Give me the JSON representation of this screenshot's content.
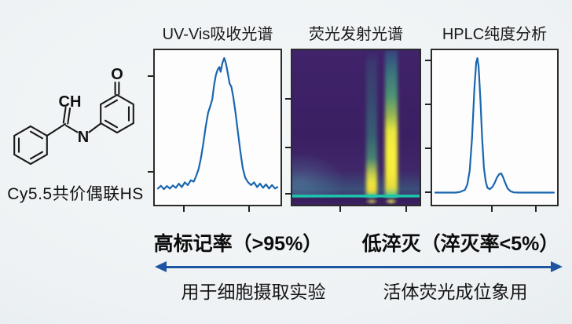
{
  "figure": {
    "molecule_label": "Cy5.5共价偶联HS",
    "atoms": {
      "vinyl": "CH",
      "nitrogen": "N",
      "oxygen": "O"
    }
  },
  "chart_data": [
    {
      "panel": "uvvis",
      "type": "line",
      "title": "UV-Vis吸收光谱",
      "line_color": "#1a66af",
      "xlabel": "",
      "ylabel": "",
      "x_range_normalized": [
        0,
        1
      ],
      "y_range_normalized": [
        0,
        1
      ],
      "points": [
        [
          0,
          0.05
        ],
        [
          0.025,
          0.07
        ],
        [
          0.05,
          0.045
        ],
        [
          0.075,
          0.068
        ],
        [
          0.1,
          0.05
        ],
        [
          0.125,
          0.072
        ],
        [
          0.15,
          0.055
        ],
        [
          0.175,
          0.085
        ],
        [
          0.2,
          0.06
        ],
        [
          0.225,
          0.095
        ],
        [
          0.25,
          0.075
        ],
        [
          0.275,
          0.11
        ],
        [
          0.3,
          0.1
        ],
        [
          0.32,
          0.14
        ],
        [
          0.34,
          0.19
        ],
        [
          0.36,
          0.27
        ],
        [
          0.38,
          0.38
        ],
        [
          0.4,
          0.5
        ],
        [
          0.42,
          0.6
        ],
        [
          0.44,
          0.655
        ],
        [
          0.455,
          0.7
        ],
        [
          0.47,
          0.8
        ],
        [
          0.485,
          0.875
        ],
        [
          0.5,
          0.915
        ],
        [
          0.515,
          0.935
        ],
        [
          0.525,
          0.9
        ],
        [
          0.54,
          0.965
        ],
        [
          0.555,
          1
        ],
        [
          0.57,
          0.96
        ],
        [
          0.585,
          0.89
        ],
        [
          0.6,
          0.815
        ],
        [
          0.615,
          0.79
        ],
        [
          0.63,
          0.72
        ],
        [
          0.65,
          0.6
        ],
        [
          0.67,
          0.46
        ],
        [
          0.69,
          0.32
        ],
        [
          0.71,
          0.2
        ],
        [
          0.73,
          0.13
        ],
        [
          0.755,
          0.095
        ],
        [
          0.78,
          0.075
        ],
        [
          0.805,
          0.095
        ],
        [
          0.83,
          0.06
        ],
        [
          0.855,
          0.085
        ],
        [
          0.88,
          0.055
        ],
        [
          0.905,
          0.08
        ],
        [
          0.93,
          0.05
        ],
        [
          0.955,
          0.075
        ],
        [
          0.98,
          0.05
        ],
        [
          1,
          0.06
        ]
      ],
      "ticks": {
        "left": [
          0.17,
          0.785
        ],
        "bottom": [
          0.233,
          0.748
        ]
      }
    },
    {
      "panel": "fluor",
      "type": "heatmap",
      "title": "荧光发射光谱",
      "colormap": "viridis",
      "description": "dark violet background with two vertical emission bands (x≈0.62 and x≈0.78 of width) brightening to yellow near the bottom, plus a bright teal horizontal baseline near the bottom edge",
      "background_layers": [
        "radial-gradient(ellipse 50% 28% at 6% 86%, rgba(85,140,165,0.5), rgba(85,140,165,0) 70%)",
        "linear-gradient(to bottom, rgba(38,165,150,0) 78%, rgba(40,170,152,0.28) 90%, rgba(40,170,152,0.1) 94%)",
        "linear-gradient(to bottom, #40236a 0%, #3b1f63 55%, #433070 100%)"
      ],
      "bands": [
        {
          "x": 0.624,
          "width": 0.09,
          "stops": "rgba(45,145,140,0) 0%, rgba(46,148,139,0.2) 8%, rgba(48,152,138,0.32) 30%, rgba(52,162,134,0.48) 55%, rgba(78,182,120,0.65) 70%, rgba(205,218,75,0.92) 80%, #f0e63e 86%, #edd83b 91%, rgba(70,195,150,0.85) 95%, rgba(48,152,140,0.45) 100%"
        },
        {
          "x": 0.776,
          "width": 0.1,
          "stops": "rgba(45,110,150,0.45) 0%, rgba(56,170,142,0.6) 14%, rgba(85,188,120,0.75) 30%, rgba(165,205,80,0.88) 42%, #e9e83e 52%, #f8f13c 66%, #f5ec3a 80%, #e6dd40 89%, rgba(75,200,150,0.9) 95%, rgba(52,162,145,0.5) 100%"
        }
      ],
      "baseline_line_y": 0.942,
      "baseline_line_color": "#19c9ac",
      "bottom_spots": [
        "radial-gradient(ellipse 7% 3% at 62.4% 97.8%, rgba(242,235,90,0.65), rgba(242,235,90,0) 75%)",
        "radial-gradient(ellipse 7% 3% at 77.6% 97.8%, rgba(246,240,95,0.8), rgba(246,240,95,0) 75%)"
      ],
      "bottom_band": "linear-gradient(to bottom, rgba(54,26,88,0) 95.3%, rgba(54,26,88,0.95) 96%, rgba(60,32,95,0.95) 100%)",
      "ticks": {
        "left": [
          0.315,
          0.63,
          0.93
        ],
        "bottom": [
          0.376,
          0.897
        ]
      }
    },
    {
      "panel": "hplc",
      "type": "line",
      "title": "HPLC纯度分析",
      "line_color": "#1a66af",
      "xlabel": "",
      "ylabel": "",
      "x_range_normalized": [
        0,
        1
      ],
      "y_range_normalized": [
        0,
        1
      ],
      "points": [
        [
          0,
          0.02
        ],
        [
          0.06,
          0.02
        ],
        [
          0.12,
          0.02
        ],
        [
          0.17,
          0.02
        ],
        [
          0.21,
          0.025
        ],
        [
          0.25,
          0.04
        ],
        [
          0.27,
          0.08
        ],
        [
          0.29,
          0.18
        ],
        [
          0.31,
          0.42
        ],
        [
          0.33,
          0.78
        ],
        [
          0.345,
          0.97
        ],
        [
          0.355,
          1
        ],
        [
          0.365,
          0.94
        ],
        [
          0.38,
          0.7
        ],
        [
          0.395,
          0.42
        ],
        [
          0.41,
          0.2
        ],
        [
          0.425,
          0.1
        ],
        [
          0.44,
          0.055
        ],
        [
          0.46,
          0.045
        ],
        [
          0.48,
          0.06
        ],
        [
          0.5,
          0.09
        ],
        [
          0.52,
          0.13
        ],
        [
          0.54,
          0.155
        ],
        [
          0.555,
          0.16
        ],
        [
          0.57,
          0.135
        ],
        [
          0.59,
          0.09
        ],
        [
          0.61,
          0.05
        ],
        [
          0.635,
          0.03
        ],
        [
          0.66,
          0.022
        ],
        [
          0.7,
          0.02
        ],
        [
          0.76,
          0.02
        ],
        [
          0.82,
          0.02
        ],
        [
          0.88,
          0.02
        ],
        [
          0.94,
          0.02
        ],
        [
          1,
          0.02
        ]
      ],
      "ticks": {
        "left": [
          0.065,
          0.35,
          0.635,
          0.92
        ],
        "bottom": [
          0.475,
          0.833
        ]
      }
    }
  ],
  "annotations": {
    "label_left": "高标记率（>95%）",
    "label_right": "低淬灭（淬灭率<5%）",
    "caption_left": "用于细胞摄取实验",
    "caption_right": "活体荧光成位象用"
  },
  "colors": {
    "arrow": "#1d55a0",
    "plot_line": "#1a66af",
    "panel_frame": "#2b2b2b",
    "heatmap_background": "#3b1f63",
    "heatmap_highlight": "#f5ec3a",
    "baseline_teal": "#19c9ac"
  }
}
